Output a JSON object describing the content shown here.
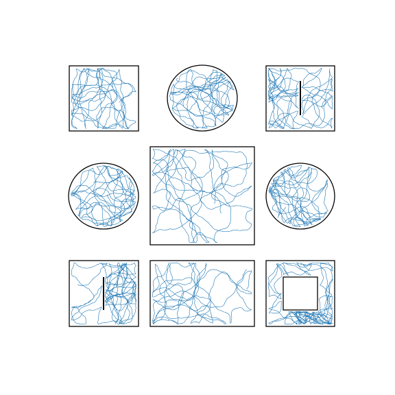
{
  "figure": {
    "description_visible_text": "",
    "colors": {
      "trajectory": "#1f77b4",
      "boundary": "#000000",
      "background": "#ffffff"
    },
    "panels": [
      {
        "id": "square-top-left",
        "shape": "rect"
      },
      {
        "id": "circle-top-center",
        "shape": "ellipse"
      },
      {
        "id": "square-wall-top-right",
        "shape": "rect",
        "obstacle": "vertical-wall"
      },
      {
        "id": "circle-middle-left",
        "shape": "ellipse"
      },
      {
        "id": "large-rect-center",
        "shape": "rect"
      },
      {
        "id": "circle-middle-right",
        "shape": "ellipse"
      },
      {
        "id": "square-wall-bottom-left",
        "shape": "rect",
        "obstacle": "vertical-wall"
      },
      {
        "id": "wide-rect-bottom-center",
        "shape": "rect"
      },
      {
        "id": "square-hole-bottom-right",
        "shape": "rect",
        "obstacle": "inner-square"
      }
    ]
  }
}
